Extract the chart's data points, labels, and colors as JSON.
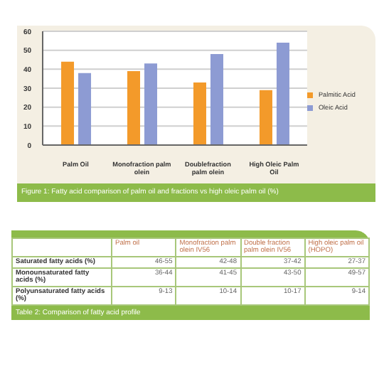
{
  "chart_data": [
    {
      "type": "bar",
      "title": "Figure 1: Fatty acid comparison of palm oil and fractions vs high oleic palm oil (%)",
      "categories": [
        "Palm Oil",
        "Monofraction palm olein",
        "Doublefraction palm olein",
        "High Oleic Palm Oil"
      ],
      "series": [
        {
          "name": "Palmitic Acid",
          "color": "#f39a2a",
          "values": [
            44,
            39,
            33,
            29
          ]
        },
        {
          "name": "Oleic Acid",
          "color": "#8d9bd3",
          "values": [
            38,
            43,
            48,
            54
          ]
        }
      ],
      "ylim": [
        0,
        60
      ],
      "yticks": [
        0,
        10,
        20,
        30,
        40,
        50,
        60
      ],
      "grid": "y",
      "legend": "right"
    },
    {
      "type": "other",
      "title": "Table 2: Comparison of fatty acid profile",
      "categories": [
        "Palm oil",
        "Monofraction palm olein IV56",
        "Double fraction palm olein IV56",
        "High oleic palm oil (HOPO)"
      ],
      "y_categories": [
        "Saturated fatty acids (%)",
        "Monounsaturated fatty acids (%)",
        "Polyunsaturated fatty acids (%)"
      ],
      "cell_labels": [
        [
          "46-55",
          "42-48",
          "37-42",
          "27-37"
        ],
        [
          "36-44",
          "41-45",
          "43-50",
          "49-57"
        ],
        [
          "9-13",
          "10-14",
          "10-17",
          "9-14"
        ]
      ]
    }
  ]
}
